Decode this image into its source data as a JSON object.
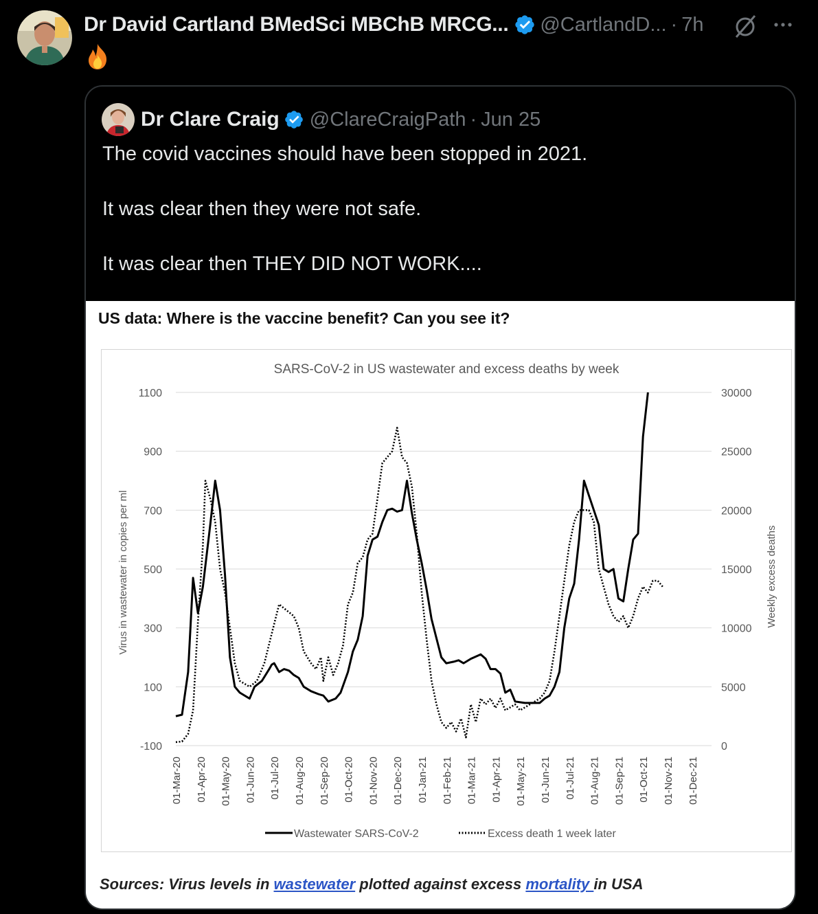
{
  "tweet": {
    "author_name": "Dr David Cartland BMedSci MBChB MRCG...",
    "handle": "@CartlandD...",
    "separator": "·",
    "time": "7h",
    "emoji": "🔥",
    "more_label": "···"
  },
  "quoted": {
    "author_name": "Dr Clare Craig",
    "handle": "@ClareCraigPath",
    "separator": "·",
    "date": "Jun 25",
    "lines": [
      "The covid vaccines should have been stopped in 2021.",
      "It was clear then they were not safe.",
      "It was clear then THEY DID NOT WORK...."
    ],
    "image": {
      "heading": "US data:  Where is the vaccine benefit? Can you see it?",
      "sources_prefix": "Sources: Virus levels in ",
      "sources_link1": "wastewater",
      "sources_middle": " plotted against excess ",
      "sources_link2": "mortality ",
      "sources_suffix": "in USA"
    }
  },
  "colors": {
    "accent": "#1d9bf0",
    "link": "#2b55c6",
    "muted": "#71767b"
  },
  "chart_data": {
    "type": "line",
    "title": "SARS-CoV-2 in US wastewater and excess deaths by week",
    "ylabel": "Virus in wastewater in copies per ml",
    "y2label": "Weekly excess deaths",
    "ylim": [
      -100,
      1100
    ],
    "y2lim": [
      0,
      30000
    ],
    "y_ticks": [
      "1100",
      "900",
      "700",
      "500",
      "300",
      "100",
      "-100"
    ],
    "y2_ticks": [
      "30000",
      "25000",
      "20000",
      "15000",
      "10000",
      "5000",
      "0"
    ],
    "x_ticks": [
      "01-Mar-20",
      "01-Apr-20",
      "01-May-20",
      "01-Jun-20",
      "01-Jul-20",
      "01-Aug-20",
      "01-Sep-20",
      "01-Oct-20",
      "01-Nov-20",
      "01-Dec-20",
      "01-Jan-21",
      "01-Feb-21",
      "01-Mar-21",
      "01-Apr-21",
      "01-May-21",
      "01-Jun-21",
      "01-Jul-21",
      "01-Aug-21",
      "01-Sep-21",
      "01-Oct-21",
      "01-Nov-21",
      "01-Dec-21"
    ],
    "grid": true,
    "legend_position": "bottom",
    "series": [
      {
        "name": "Wastewater SARS-CoV-2",
        "axis": "left",
        "style": "solid",
        "points": [
          [
            0,
            0
          ],
          [
            0.25,
            5
          ],
          [
            0.5,
            150
          ],
          [
            0.7,
            470
          ],
          [
            0.9,
            350
          ],
          [
            1.1,
            440
          ],
          [
            1.4,
            650
          ],
          [
            1.6,
            800
          ],
          [
            1.8,
            700
          ],
          [
            2.0,
            480
          ],
          [
            2.2,
            200
          ],
          [
            2.4,
            100
          ],
          [
            2.6,
            80
          ],
          [
            3.0,
            60
          ],
          [
            3.2,
            100
          ],
          [
            3.5,
            120
          ],
          [
            3.8,
            160
          ],
          [
            3.9,
            175
          ],
          [
            4.0,
            180
          ],
          [
            4.2,
            150
          ],
          [
            4.4,
            160
          ],
          [
            4.6,
            155
          ],
          [
            4.8,
            140
          ],
          [
            5.0,
            130
          ],
          [
            5.2,
            100
          ],
          [
            5.5,
            85
          ],
          [
            5.8,
            75
          ],
          [
            6.0,
            70
          ],
          [
            6.2,
            50
          ],
          [
            6.5,
            60
          ],
          [
            6.7,
            80
          ],
          [
            7.0,
            150
          ],
          [
            7.2,
            220
          ],
          [
            7.4,
            260
          ],
          [
            7.6,
            340
          ],
          [
            7.8,
            545
          ],
          [
            8.0,
            600
          ],
          [
            8.2,
            610
          ],
          [
            8.4,
            660
          ],
          [
            8.6,
            700
          ],
          [
            8.8,
            705
          ],
          [
            9.0,
            695
          ],
          [
            9.2,
            700
          ],
          [
            9.4,
            800
          ],
          [
            9.6,
            690
          ],
          [
            9.8,
            600
          ],
          [
            10.0,
            520
          ],
          [
            10.2,
            430
          ],
          [
            10.4,
            330
          ],
          [
            10.8,
            200
          ],
          [
            11.0,
            180
          ],
          [
            11.3,
            185
          ],
          [
            11.5,
            190
          ],
          [
            11.7,
            180
          ],
          [
            12.0,
            195
          ],
          [
            12.4,
            210
          ],
          [
            12.6,
            195
          ],
          [
            12.8,
            160
          ],
          [
            13.0,
            160
          ],
          [
            13.2,
            145
          ],
          [
            13.4,
            80
          ],
          [
            13.6,
            90
          ],
          [
            13.8,
            50
          ],
          [
            14.2,
            45
          ],
          [
            14.6,
            45
          ],
          [
            14.8,
            45
          ],
          [
            15.0,
            60
          ],
          [
            15.2,
            70
          ],
          [
            15.4,
            100
          ],
          [
            15.6,
            150
          ],
          [
            15.8,
            300
          ],
          [
            16.0,
            400
          ],
          [
            16.2,
            450
          ],
          [
            16.4,
            600
          ],
          [
            16.6,
            800
          ],
          [
            16.8,
            750
          ],
          [
            17.0,
            700
          ],
          [
            17.2,
            650
          ],
          [
            17.4,
            500
          ],
          [
            17.6,
            490
          ],
          [
            17.8,
            500
          ],
          [
            18.0,
            400
          ],
          [
            18.2,
            390
          ],
          [
            18.4,
            500
          ],
          [
            18.6,
            600
          ],
          [
            18.8,
            620
          ],
          [
            19.0,
            950
          ],
          [
            19.2,
            1100
          ]
        ]
      },
      {
        "name": "Excess death 1 week later",
        "axis": "right",
        "style": "dotted",
        "points": [
          [
            0,
            300
          ],
          [
            0.25,
            350
          ],
          [
            0.5,
            1000
          ],
          [
            0.7,
            3000
          ],
          [
            0.9,
            10500
          ],
          [
            1.1,
            17000
          ],
          [
            1.2,
            22500
          ],
          [
            1.4,
            21000
          ],
          [
            1.6,
            19000
          ],
          [
            1.8,
            15000
          ],
          [
            2.0,
            13000
          ],
          [
            2.2,
            10000
          ],
          [
            2.4,
            7000
          ],
          [
            2.6,
            5500
          ],
          [
            3.0,
            5000
          ],
          [
            3.3,
            5500
          ],
          [
            3.6,
            7000
          ],
          [
            3.9,
            9500
          ],
          [
            4.2,
            12000
          ],
          [
            4.5,
            11500
          ],
          [
            4.8,
            11000
          ],
          [
            5.0,
            10000
          ],
          [
            5.2,
            8000
          ],
          [
            5.5,
            7000
          ],
          [
            5.7,
            6500
          ],
          [
            5.9,
            7500
          ],
          [
            6.0,
            5500
          ],
          [
            6.2,
            7500
          ],
          [
            6.4,
            6000
          ],
          [
            6.6,
            7000
          ],
          [
            6.8,
            8500
          ],
          [
            7.0,
            12000
          ],
          [
            7.2,
            13000
          ],
          [
            7.4,
            15500
          ],
          [
            7.6,
            16000
          ],
          [
            7.8,
            17500
          ],
          [
            8.0,
            18000
          ],
          [
            8.2,
            21000
          ],
          [
            8.4,
            24000
          ],
          [
            8.6,
            24500
          ],
          [
            8.8,
            25000
          ],
          [
            9.0,
            27000
          ],
          [
            9.2,
            24500
          ],
          [
            9.4,
            24000
          ],
          [
            9.6,
            22000
          ],
          [
            9.8,
            18000
          ],
          [
            10.0,
            13000
          ],
          [
            10.2,
            9000
          ],
          [
            10.4,
            5500
          ],
          [
            10.6,
            3500
          ],
          [
            10.8,
            2000
          ],
          [
            11.0,
            1500
          ],
          [
            11.2,
            2000
          ],
          [
            11.4,
            1200
          ],
          [
            11.6,
            2300
          ],
          [
            11.8,
            700
          ],
          [
            12.0,
            3500
          ],
          [
            12.2,
            2000
          ],
          [
            12.4,
            4000
          ],
          [
            12.6,
            3500
          ],
          [
            12.8,
            4000
          ],
          [
            13.0,
            3200
          ],
          [
            13.2,
            4000
          ],
          [
            13.4,
            3000
          ],
          [
            13.8,
            3500
          ],
          [
            14.0,
            3000
          ],
          [
            14.4,
            3500
          ],
          [
            14.8,
            4000
          ],
          [
            15.0,
            4500
          ],
          [
            15.2,
            5500
          ],
          [
            15.4,
            8000
          ],
          [
            15.6,
            11000
          ],
          [
            15.8,
            14000
          ],
          [
            16.0,
            17000
          ],
          [
            16.2,
            19000
          ],
          [
            16.4,
            20000
          ],
          [
            16.8,
            20000
          ],
          [
            17.0,
            19000
          ],
          [
            17.2,
            15000
          ],
          [
            17.4,
            13500
          ],
          [
            17.6,
            12000
          ],
          [
            17.8,
            11000
          ],
          [
            18.0,
            10500
          ],
          [
            18.2,
            11000
          ],
          [
            18.4,
            10000
          ],
          [
            18.6,
            11000
          ],
          [
            18.8,
            12500
          ],
          [
            19.0,
            13500
          ],
          [
            19.2,
            13000
          ],
          [
            19.4,
            14000
          ],
          [
            19.6,
            14000
          ],
          [
            19.8,
            13500
          ]
        ]
      }
    ]
  }
}
